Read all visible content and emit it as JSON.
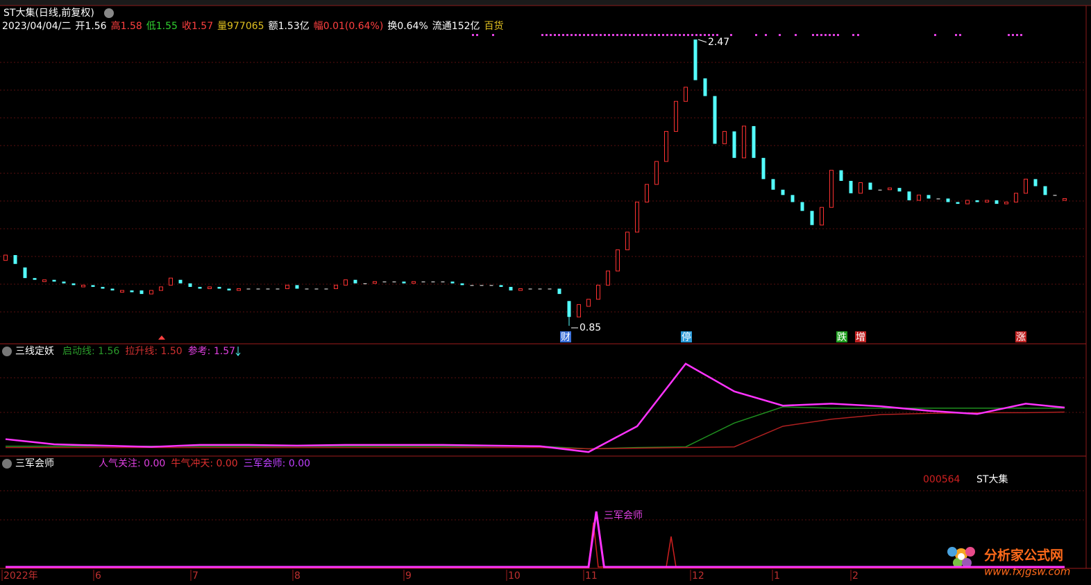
{
  "title": "ST大集(日线,前复权)",
  "info": [
    {
      "label": "2023/04/04/二",
      "value": "",
      "color": "#ffffff"
    },
    {
      "label": "开",
      "value": "1.56",
      "color": "#ffffff"
    },
    {
      "label": "高",
      "value": "1.58",
      "color": "#ff4040"
    },
    {
      "label": "低",
      "value": "1.55",
      "color": "#30d030"
    },
    {
      "label": "收",
      "value": "1.57",
      "color": "#ff4040"
    },
    {
      "label": "量",
      "value": "977065",
      "color": "#e0c020"
    },
    {
      "label": "额",
      "value": "1.53亿",
      "color": "#ffffff"
    },
    {
      "label": "幅",
      "value": "0.01(0.64%)",
      "color": "#ff4040"
    },
    {
      "label": "换",
      "value": "0.64%",
      "color": "#ffffff"
    },
    {
      "label": "流通",
      "value": "152亿",
      "color": "#ffffff"
    },
    {
      "label": "百货",
      "value": "",
      "color": "#e0c020"
    }
  ],
  "price": {
    "open": [
      1.22,
      1.25,
      1.18,
      1.12,
      1.1,
      1.11,
      1.1,
      1.09,
      1.07,
      1.08,
      1.07,
      1.06,
      1.04,
      1.05,
      1.05,
      1.03,
      1.05,
      1.08,
      1.11,
      1.09,
      1.07,
      1.06,
      1.07,
      1.06,
      1.05,
      1.06,
      1.06,
      1.06,
      1.06,
      1.06,
      1.08,
      1.06,
      1.06,
      1.06,
      1.06,
      1.08,
      1.11,
      1.09,
      1.09,
      1.1,
      1.1,
      1.1,
      1.09,
      1.1,
      1.1,
      1.1,
      1.1,
      1.09,
      1.08,
      1.08,
      1.08,
      1.08,
      1.07,
      1.05,
      1.06,
      1.06,
      1.06,
      1.06,
      0.99,
      0.9,
      0.96,
      1.0,
      1.08,
      1.16,
      1.28,
      1.38,
      1.55,
      1.65,
      1.78,
      1.95,
      2.12,
      2.47,
      2.25,
      2.15,
      1.88,
      1.95,
      1.8,
      1.98,
      1.8,
      1.68,
      1.62,
      1.59,
      1.55,
      1.5,
      1.42,
      1.52,
      1.73,
      1.67,
      1.6,
      1.66,
      1.62,
      1.62,
      1.63,
      1.61,
      1.56,
      1.59,
      1.57,
      1.57,
      1.55,
      1.54,
      1.56,
      1.55,
      1.56,
      1.54,
      1.55,
      1.6,
      1.68,
      1.64,
      1.59,
      1.56
    ],
    "close": [
      1.25,
      1.2,
      1.12,
      1.11,
      1.11,
      1.1,
      1.09,
      1.08,
      1.08,
      1.07,
      1.06,
      1.05,
      1.05,
      1.04,
      1.03,
      1.05,
      1.07,
      1.12,
      1.09,
      1.07,
      1.06,
      1.07,
      1.06,
      1.05,
      1.06,
      1.06,
      1.06,
      1.06,
      1.06,
      1.08,
      1.06,
      1.06,
      1.06,
      1.06,
      1.08,
      1.11,
      1.09,
      1.09,
      1.1,
      1.1,
      1.1,
      1.09,
      1.1,
      1.1,
      1.1,
      1.1,
      1.09,
      1.08,
      1.08,
      1.08,
      1.08,
      1.07,
      1.05,
      1.06,
      1.06,
      1.06,
      1.06,
      1.03,
      0.9,
      0.97,
      1.0,
      1.08,
      1.16,
      1.28,
      1.38,
      1.55,
      1.65,
      1.78,
      1.95,
      2.12,
      2.2,
      2.24,
      2.15,
      1.88,
      1.95,
      1.8,
      1.98,
      1.8,
      1.68,
      1.62,
      1.59,
      1.55,
      1.5,
      1.42,
      1.52,
      1.73,
      1.67,
      1.6,
      1.66,
      1.62,
      1.62,
      1.63,
      1.61,
      1.56,
      1.59,
      1.57,
      1.57,
      1.55,
      1.54,
      1.56,
      1.55,
      1.56,
      1.54,
      1.55,
      1.6,
      1.68,
      1.64,
      1.59,
      1.59,
      1.57
    ],
    "high_mark": {
      "index": 71,
      "value": 2.47
    },
    "low_mark": {
      "index": 58,
      "value": 0.85
    }
  },
  "signals": [
    "财",
    "停",
    "跌",
    "增",
    "涨"
  ],
  "indicator": {
    "title": "三线定妖",
    "items": [
      {
        "text": "启动线: 1.56",
        "color": "#2a9a2a"
      },
      {
        "text": "拉升线: 1.50",
        "color": "#d03030"
      },
      {
        "text": "参考: 1.57",
        "color": "#e040e0"
      }
    ],
    "x": [
      0,
      5,
      10,
      15,
      20,
      25,
      30,
      35,
      40,
      45,
      50,
      55,
      60,
      65,
      70,
      75,
      80,
      85,
      90,
      95,
      100,
      105,
      109
    ],
    "series": [
      {
        "name": "启动线",
        "color": "#1f8f1f",
        "values": [
          0.97,
          0.97,
          0.97,
          0.97,
          0.97,
          0.97,
          0.97,
          0.97,
          0.97,
          0.97,
          0.97,
          0.97,
          0.93,
          0.95,
          0.96,
          1.33,
          1.58,
          1.56,
          1.56,
          1.56,
          1.56,
          1.56,
          1.56
        ]
      },
      {
        "name": "拉升线",
        "color": "#b02020",
        "values": [
          0.95,
          0.95,
          0.95,
          0.95,
          0.95,
          0.95,
          0.95,
          0.95,
          0.95,
          0.95,
          0.95,
          0.95,
          0.93,
          0.94,
          0.95,
          0.96,
          1.28,
          1.39,
          1.46,
          1.48,
          1.49,
          1.49,
          1.5
        ]
      },
      {
        "name": "参考",
        "color": "#ff33ff",
        "values": [
          1.08,
          1.0,
          0.98,
          0.96,
          0.99,
          0.99,
          0.98,
          0.99,
          0.99,
          0.99,
          0.98,
          0.97,
          0.88,
          1.28,
          2.25,
          1.82,
          1.6,
          1.63,
          1.59,
          1.52,
          1.47,
          1.63,
          1.57
        ]
      }
    ]
  },
  "sanjun": {
    "title": "三军会师",
    "items": [
      {
        "text": "人气关注: 0.00",
        "color": "#e040e0"
      },
      {
        "text": "牛气冲天: 0.00",
        "color": "#e03030"
      },
      {
        "text": "三军会师: 0.00",
        "color": "#c040ff"
      }
    ],
    "code": "000564",
    "name": "ST大集",
    "annotation": "三军会师",
    "series": [
      {
        "name": "牛气冲天",
        "color": "#d02020",
        "x": [
          0,
          60,
          60.5,
          61,
          68,
          68.5,
          69,
          109
        ],
        "values": [
          0,
          0,
          0.8,
          0,
          0,
          0.55,
          0,
          0
        ]
      },
      {
        "name": "三军会师",
        "color": "#ff33ff",
        "x": [
          0,
          60,
          60.8,
          61.6,
          109
        ],
        "values": [
          0,
          0,
          1,
          0,
          0
        ]
      }
    ]
  },
  "x_labels": [
    "2022年",
    "6",
    "7",
    "8",
    "9",
    "10",
    "11",
    "12",
    "1",
    "2"
  ],
  "watermark": {
    "name": "分析家公式网",
    "url": "www.fxjgsw.com"
  }
}
